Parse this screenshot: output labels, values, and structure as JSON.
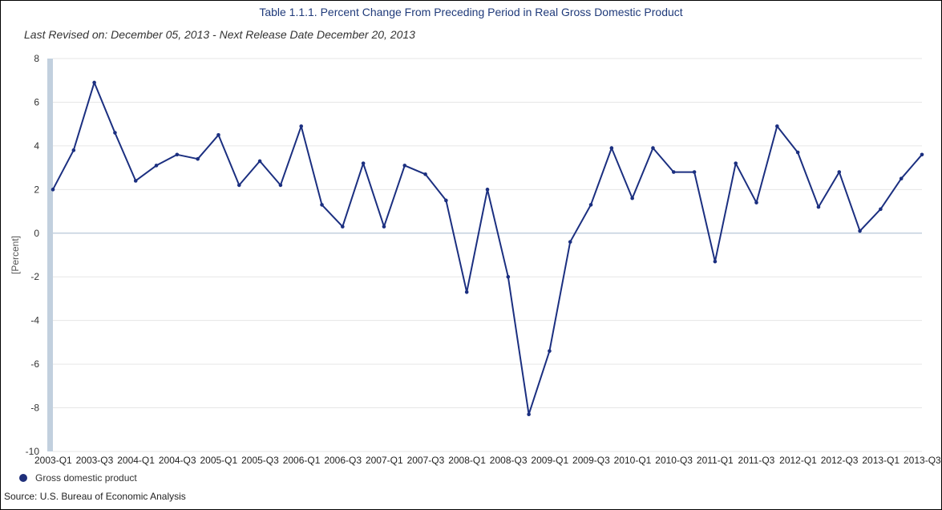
{
  "header": {
    "title": "Table 1.1.1. Percent Change From Preceding Period in Real Gross Domestic Product",
    "subtitle": "Last Revised on: December 05, 2013 - Next Release Date December 20, 2013"
  },
  "footer": {
    "source": "Source: U.S. Bureau of Economic Analysis"
  },
  "colors": {
    "series": "#1b2f80",
    "grid": "#e6e6e6",
    "zero_line": "#b7c7d8",
    "axis_band": "#c2d0de",
    "title": "#1f3a7a"
  },
  "chart_data": {
    "type": "line",
    "title": "Table 1.1.1. Percent Change From Preceding Period in Real Gross Domestic Product",
    "ylabel": "[Percent]",
    "xlabel": "",
    "ylim": [
      -10,
      8
    ],
    "yticks": [
      8,
      6,
      4,
      2,
      0,
      -2,
      -4,
      -6,
      -8,
      -10
    ],
    "grid": true,
    "legend": "bottom-left",
    "x": [
      "2003-Q1",
      "2003-Q2",
      "2003-Q3",
      "2003-Q4",
      "2004-Q1",
      "2004-Q2",
      "2004-Q3",
      "2004-Q4",
      "2005-Q1",
      "2005-Q2",
      "2005-Q3",
      "2005-Q4",
      "2006-Q1",
      "2006-Q2",
      "2006-Q3",
      "2006-Q4",
      "2007-Q1",
      "2007-Q2",
      "2007-Q3",
      "2007-Q4",
      "2008-Q1",
      "2008-Q2",
      "2008-Q3",
      "2008-Q4",
      "2009-Q1",
      "2009-Q2",
      "2009-Q3",
      "2009-Q4",
      "2010-Q1",
      "2010-Q2",
      "2010-Q3",
      "2010-Q4",
      "2011-Q1",
      "2011-Q2",
      "2011-Q3",
      "2011-Q4",
      "2012-Q1",
      "2012-Q2",
      "2012-Q3",
      "2012-Q4",
      "2013-Q1",
      "2013-Q2",
      "2013-Q3"
    ],
    "xtick_labels": [
      "2003-Q1",
      "2003-Q3",
      "2004-Q1",
      "2004-Q3",
      "2005-Q1",
      "2005-Q3",
      "2006-Q1",
      "2006-Q3",
      "2007-Q1",
      "2007-Q3",
      "2008-Q1",
      "2008-Q3",
      "2009-Q1",
      "2009-Q3",
      "2010-Q1",
      "2010-Q3",
      "2011-Q1",
      "2011-Q3",
      "2012-Q1",
      "2012-Q3",
      "2013-Q1",
      "2013-Q3"
    ],
    "series": [
      {
        "name": "Gross domestic product",
        "values": [
          2.0,
          3.8,
          6.9,
          4.6,
          2.4,
          3.1,
          3.6,
          3.4,
          4.5,
          2.2,
          3.3,
          2.2,
          4.9,
          1.3,
          0.3,
          3.2,
          0.3,
          3.1,
          2.7,
          1.5,
          -2.7,
          2.0,
          -2.0,
          -8.3,
          -5.4,
          -0.4,
          1.3,
          3.9,
          1.6,
          3.9,
          2.8,
          2.8,
          -1.3,
          3.2,
          1.4,
          4.9,
          3.7,
          1.2,
          2.8,
          0.1,
          1.1,
          2.5,
          3.6
        ]
      }
    ]
  }
}
